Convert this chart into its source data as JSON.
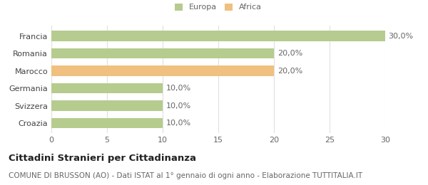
{
  "categories": [
    "Croazia",
    "Svizzera",
    "Germania",
    "Marocco",
    "Romania",
    "Francia"
  ],
  "values": [
    10.0,
    10.0,
    10.0,
    20.0,
    20.0,
    30.0
  ],
  "bar_colors": [
    "#b5cc8e",
    "#b5cc8e",
    "#b5cc8e",
    "#f0c080",
    "#b5cc8e",
    "#b5cc8e"
  ],
  "bar_labels": [
    "10,0%",
    "10,0%",
    "10,0%",
    "20,0%",
    "20,0%",
    "30,0%"
  ],
  "legend_entries": [
    {
      "label": "Europa",
      "color": "#b5cc8e"
    },
    {
      "label": "Africa",
      "color": "#f0c080"
    }
  ],
  "xlim": [
    0,
    30
  ],
  "xticks": [
    0,
    5,
    10,
    15,
    20,
    25,
    30
  ],
  "title": "Cittadini Stranieri per Cittadinanza",
  "subtitle": "COMUNE DI BRUSSON (AO) - Dati ISTAT al 1° gennaio di ogni anno - Elaborazione TUTTITALIA.IT",
  "background_color": "#ffffff",
  "grid_color": "#e0e0e0",
  "title_fontsize": 9.5,
  "subtitle_fontsize": 7.5,
  "label_fontsize": 8,
  "tick_fontsize": 8
}
